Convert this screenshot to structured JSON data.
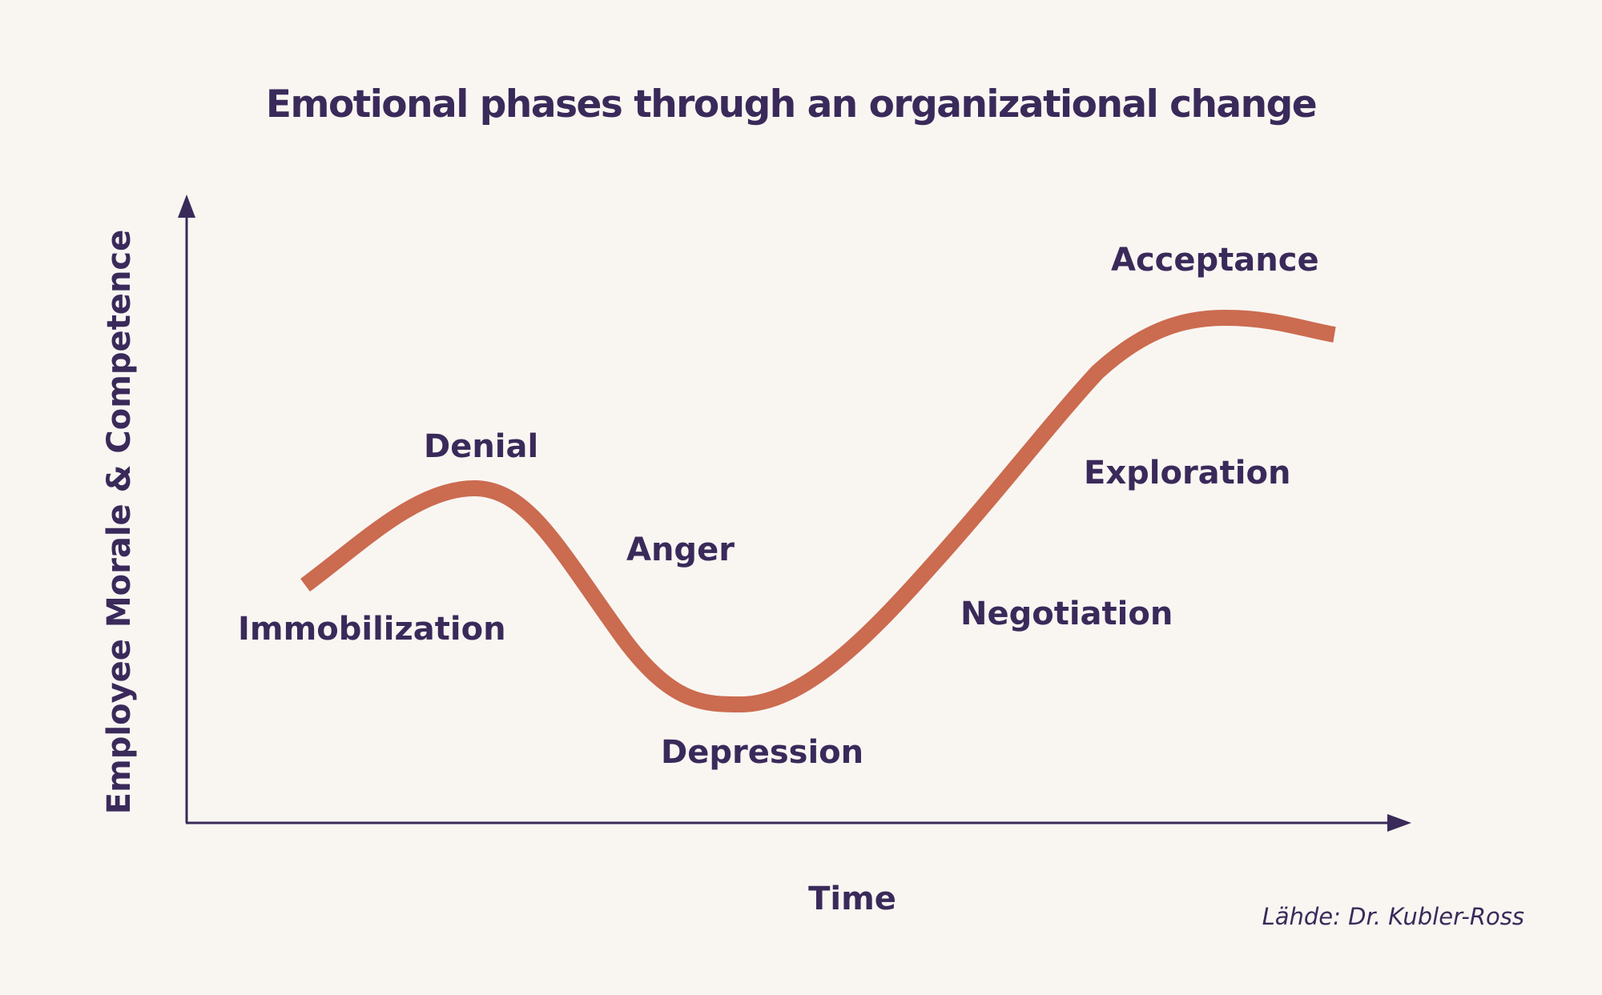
{
  "title": "Emotional phases through an organizational change",
  "axes": {
    "y_label": "Employee Morale & Competence",
    "x_label": "Time"
  },
  "phases": [
    {
      "id": "immobilization",
      "label": "Immobilization"
    },
    {
      "id": "denial",
      "label": "Denial"
    },
    {
      "id": "anger",
      "label": "Anger"
    },
    {
      "id": "depression",
      "label": "Depression"
    },
    {
      "id": "negotiation",
      "label": "Negotiation"
    },
    {
      "id": "exploration",
      "label": "Exploration"
    },
    {
      "id": "acceptance",
      "label": "Acceptance"
    }
  ],
  "source": "Lähde: Dr. Kubler-Ross",
  "colors": {
    "background": "#f9f6f2",
    "text": "#3a2a5a",
    "axis": "#3a2a5a",
    "curve": "#cb6b50"
  }
}
